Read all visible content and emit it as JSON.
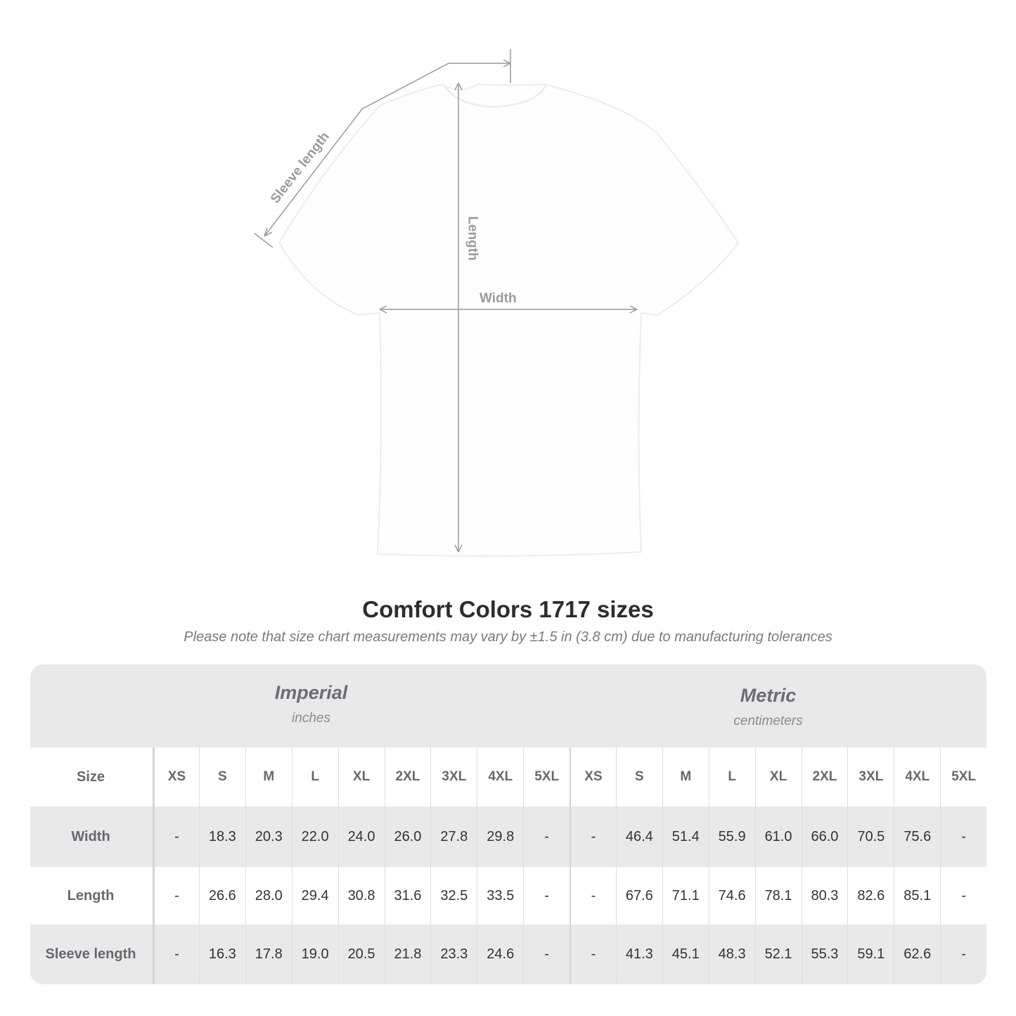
{
  "diagram": {
    "sleeve_label": "Sleeve length",
    "length_label": "Length",
    "width_label": "Width",
    "line_color": "#999999"
  },
  "title": "Comfort Colors 1717 sizes",
  "note": "Please note that size chart measurements may vary by ±1.5 in (3.8 cm) due to manufacturing tolerances",
  "table": {
    "imperial": {
      "name": "Imperial",
      "unit": "inches"
    },
    "metric": {
      "name": "Metric",
      "unit": "centimeters"
    },
    "size_label": "Size",
    "sizes": [
      "XS",
      "S",
      "M",
      "L",
      "XL",
      "2XL",
      "3XL",
      "4XL",
      "5XL"
    ],
    "rows": [
      {
        "label": "Width",
        "imperial": [
          "-",
          "18.3",
          "20.3",
          "22.0",
          "24.0",
          "26.0",
          "27.8",
          "29.8",
          "-"
        ],
        "metric": [
          "-",
          "46.4",
          "51.4",
          "55.9",
          "61.0",
          "66.0",
          "70.5",
          "75.6",
          "-"
        ]
      },
      {
        "label": "Length",
        "imperial": [
          "-",
          "26.6",
          "28.0",
          "29.4",
          "30.8",
          "31.6",
          "32.5",
          "33.5",
          "-"
        ],
        "metric": [
          "-",
          "67.6",
          "71.1",
          "74.6",
          "78.1",
          "80.3",
          "82.6",
          "85.1",
          "-"
        ]
      },
      {
        "label": "Sleeve length",
        "imperial": [
          "-",
          "16.3",
          "17.8",
          "19.0",
          "20.5",
          "21.8",
          "23.3",
          "24.6",
          "-"
        ],
        "metric": [
          "-",
          "41.3",
          "45.1",
          "48.3",
          "52.1",
          "55.3",
          "59.1",
          "62.6",
          "-"
        ]
      }
    ],
    "band_color": "#e9e9e9"
  }
}
